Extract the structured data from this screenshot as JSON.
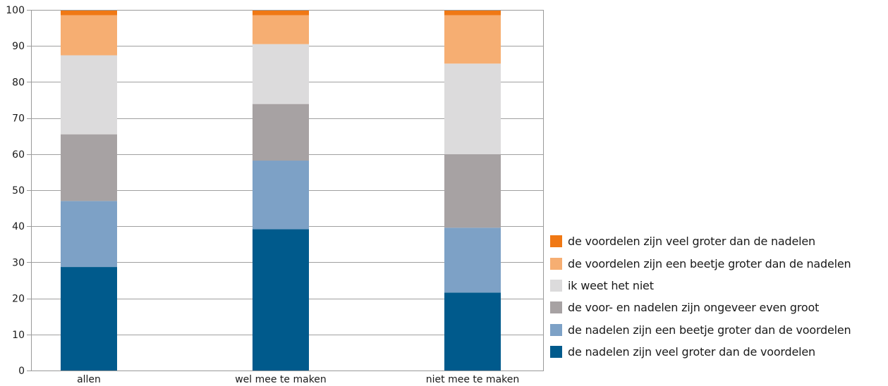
{
  "chart_data": {
    "type": "bar",
    "stacked": true,
    "categories": [
      "allen",
      "wel mee te maken",
      "niet mee te maken"
    ],
    "ylim": [
      0,
      100
    ],
    "yticks": [
      0,
      10,
      20,
      30,
      40,
      50,
      60,
      70,
      80,
      90,
      100
    ],
    "grid": true,
    "legend_position": "right",
    "series": [
      {
        "name": "de nadelen zijn veel groter dan de voordelen",
        "color": "#005a8c",
        "values": [
          28.7,
          39.2,
          21.6
        ]
      },
      {
        "name": "de nadelen zijn een beetje groter dan de voordelen",
        "color": "#7da1c6",
        "values": [
          18.3,
          19.0,
          18.0
        ]
      },
      {
        "name": "de voor- en nadelen zijn ongeveer even groot",
        "color": "#a7a2a3",
        "values": [
          18.5,
          15.7,
          20.4
        ]
      },
      {
        "name": "ik weet het niet",
        "color": "#dcdbdc",
        "values": [
          21.9,
          16.6,
          25.1
        ]
      },
      {
        "name": "de voordelen zijn een beetje groter dan de nadelen",
        "color": "#f6ae72",
        "values": [
          11.1,
          8.0,
          13.4
        ]
      },
      {
        "name": "de voordelen zijn veel groter dan de nadelen",
        "color": "#f07814",
        "values": [
          1.5,
          1.5,
          1.5
        ]
      }
    ]
  }
}
